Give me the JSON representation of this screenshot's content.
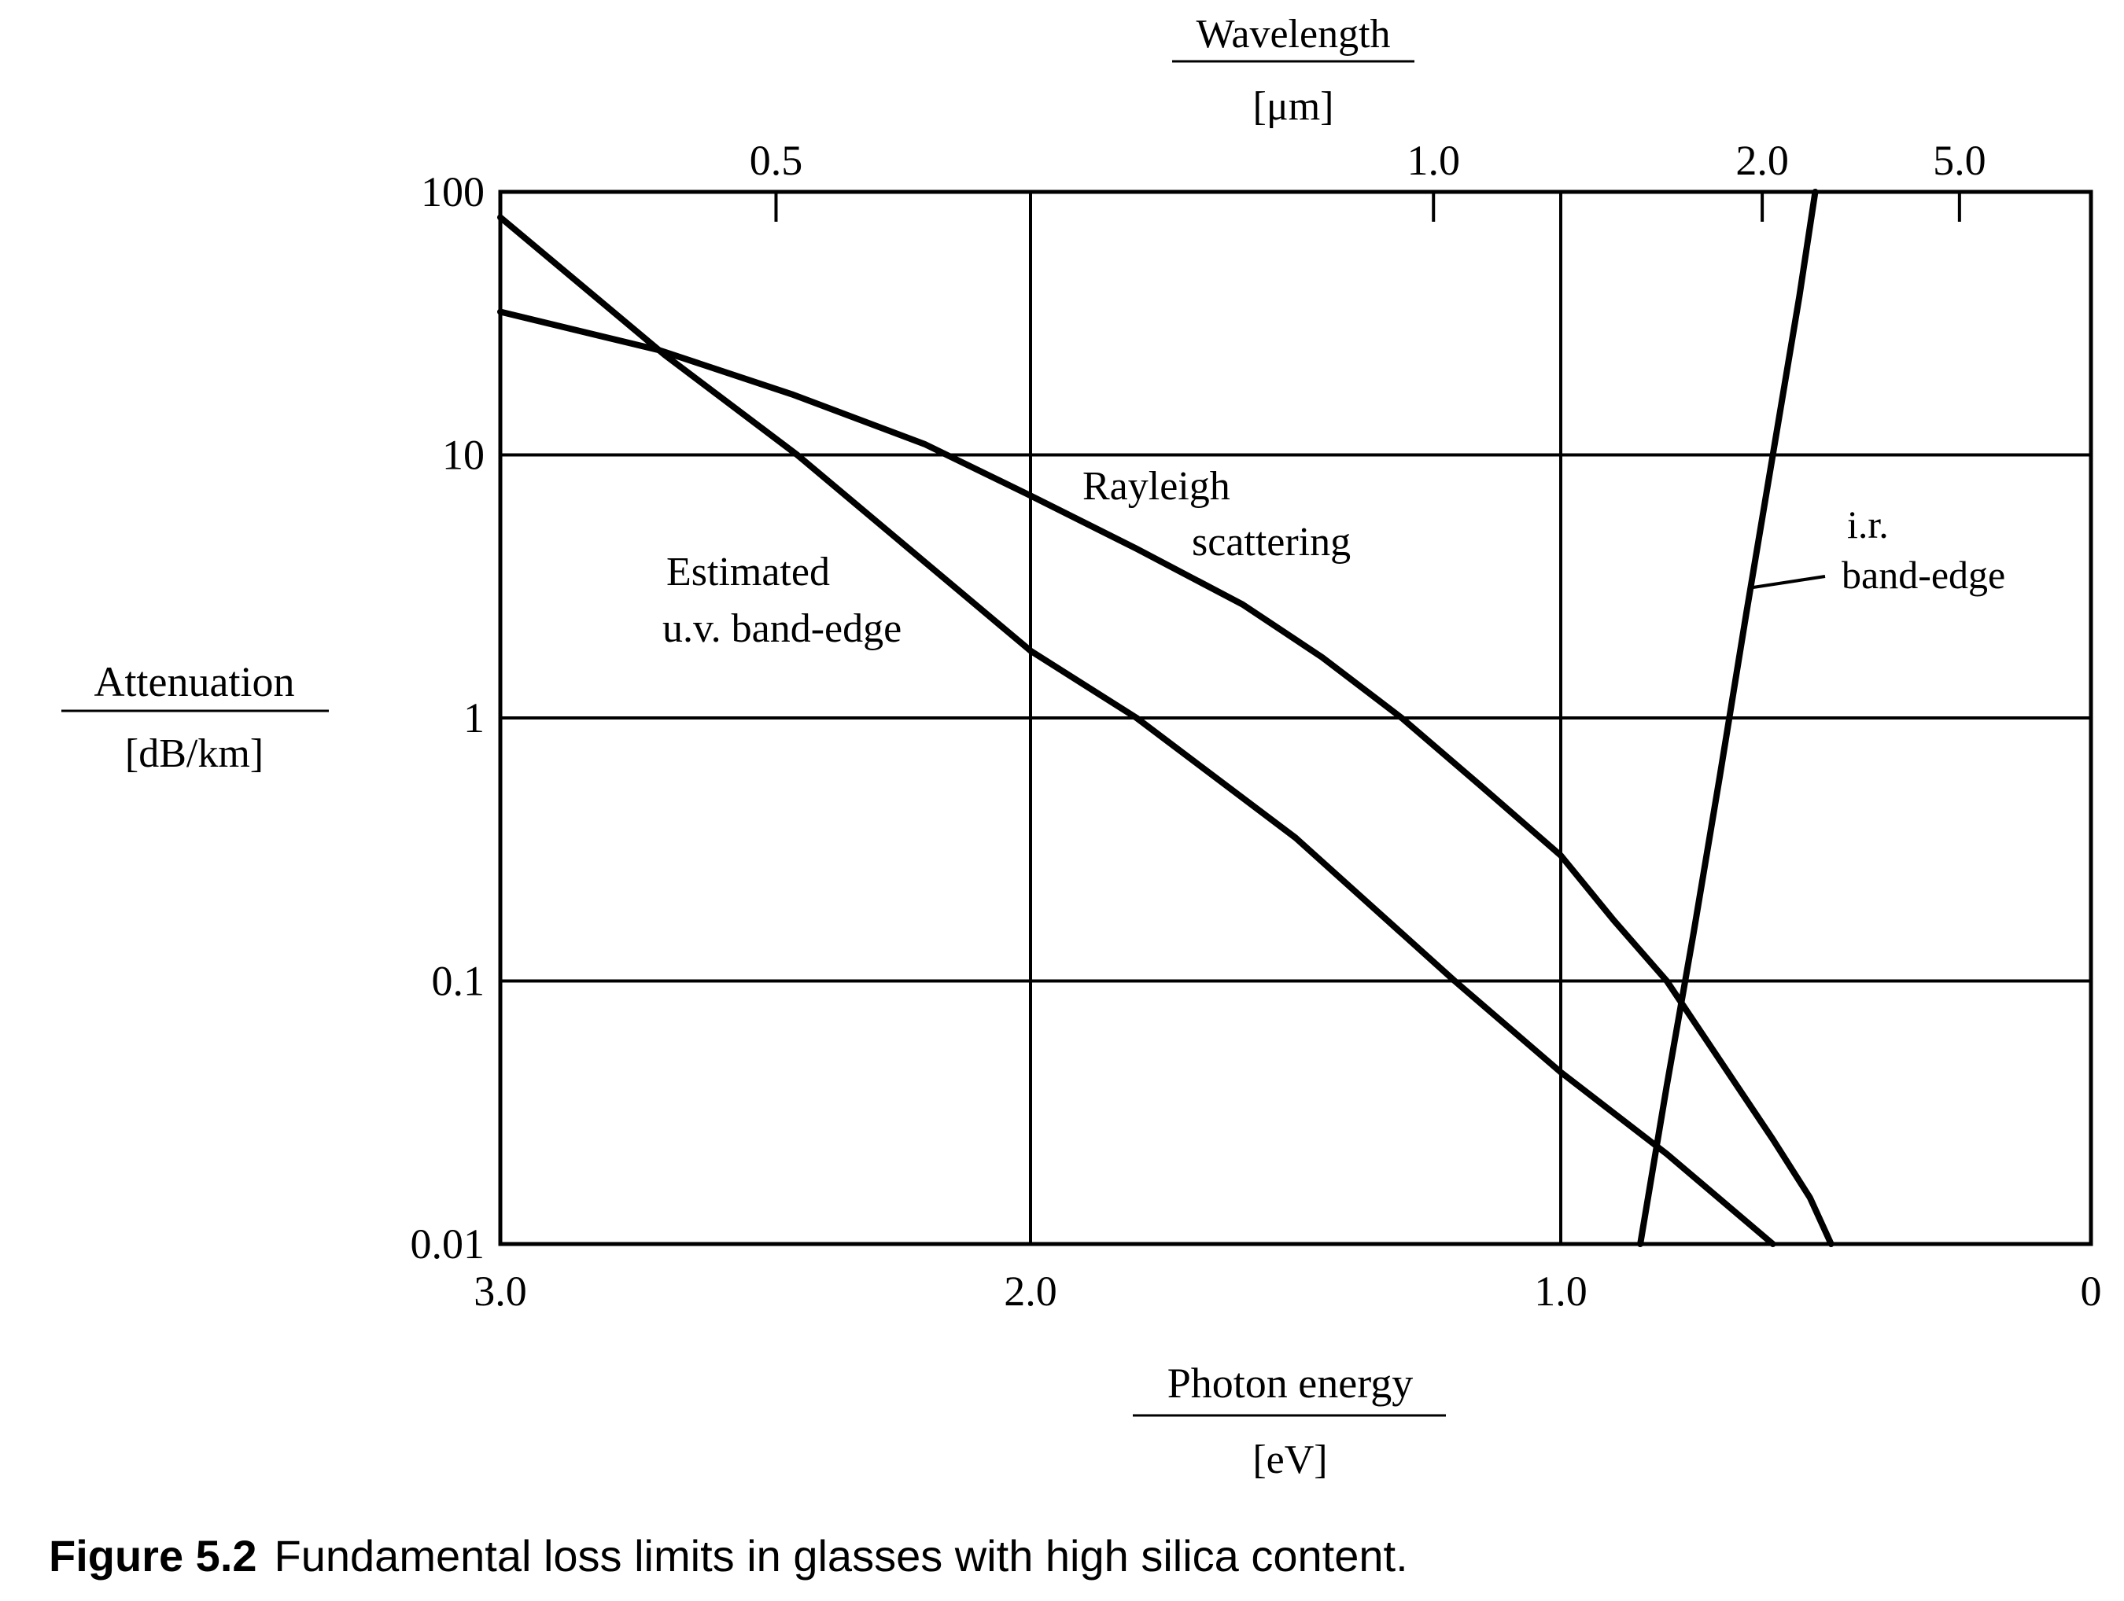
{
  "chart_data": {
    "type": "line",
    "y_scale": "log",
    "x_reversed": true,
    "grid": true,
    "xlabel": "Photon energy",
    "xunit": "[eV]",
    "ylabel": "Attenuation",
    "yunit": "[dB/km]",
    "top_axis_label": "Wavelength",
    "top_axis_unit": "[μm]",
    "xlim": [
      3.0,
      0
    ],
    "ylim": [
      0.01,
      100
    ],
    "x_ticks": [
      {
        "value": 3.0,
        "label": "3.0"
      },
      {
        "value": 2.0,
        "label": "2.0"
      },
      {
        "value": 1.0,
        "label": "1.0"
      },
      {
        "value": 0,
        "label": "0"
      }
    ],
    "y_ticks": [
      {
        "value": 100,
        "label": "100"
      },
      {
        "value": 10,
        "label": "10"
      },
      {
        "value": 1,
        "label": "1"
      },
      {
        "value": 0.1,
        "label": "0.1"
      },
      {
        "value": 0.01,
        "label": "0.01"
      }
    ],
    "top_ticks": [
      {
        "value": 0.5,
        "label": "0.5"
      },
      {
        "value": 1.0,
        "label": "1.0"
      },
      {
        "value": 2.0,
        "label": "2.0"
      },
      {
        "value": 5.0,
        "label": "5.0"
      }
    ],
    "series": [
      {
        "label_lines": [
          "Estimated",
          "u.v. band-edge"
        ],
        "x": [
          3.0,
          2.69,
          2.44,
          2.0,
          1.8,
          1.5,
          1.2,
          1.0,
          0.8,
          0.6
        ],
        "y": [
          80,
          24,
          10,
          1.8,
          1.0,
          0.35,
          0.1,
          0.045,
          0.022,
          0.01
        ]
      },
      {
        "label_lines": [
          "Rayleigh",
          "scattering"
        ],
        "x": [
          3.0,
          2.7,
          2.45,
          2.2,
          2.0,
          1.8,
          1.6,
          1.45,
          1.3,
          1.15,
          1.0,
          0.9,
          0.8,
          0.7,
          0.6,
          0.53,
          0.49
        ],
        "y": [
          35,
          25,
          17,
          11,
          7.0,
          4.4,
          2.7,
          1.7,
          1.0,
          0.55,
          0.3,
          0.17,
          0.1,
          0.05,
          0.025,
          0.015,
          0.01
        ]
      },
      {
        "label_lines": [
          "i.r.",
          "band-edge"
        ],
        "x": [
          0.85,
          0.8,
          0.75,
          0.7,
          0.65,
          0.6,
          0.55,
          0.52
        ],
        "y": [
          0.01,
          0.04,
          0.15,
          0.6,
          2.5,
          10,
          40,
          100
        ]
      }
    ]
  },
  "caption": {
    "label": "Figure 5.2",
    "text": "Fundamental loss limits in glasses with high silica content."
  }
}
